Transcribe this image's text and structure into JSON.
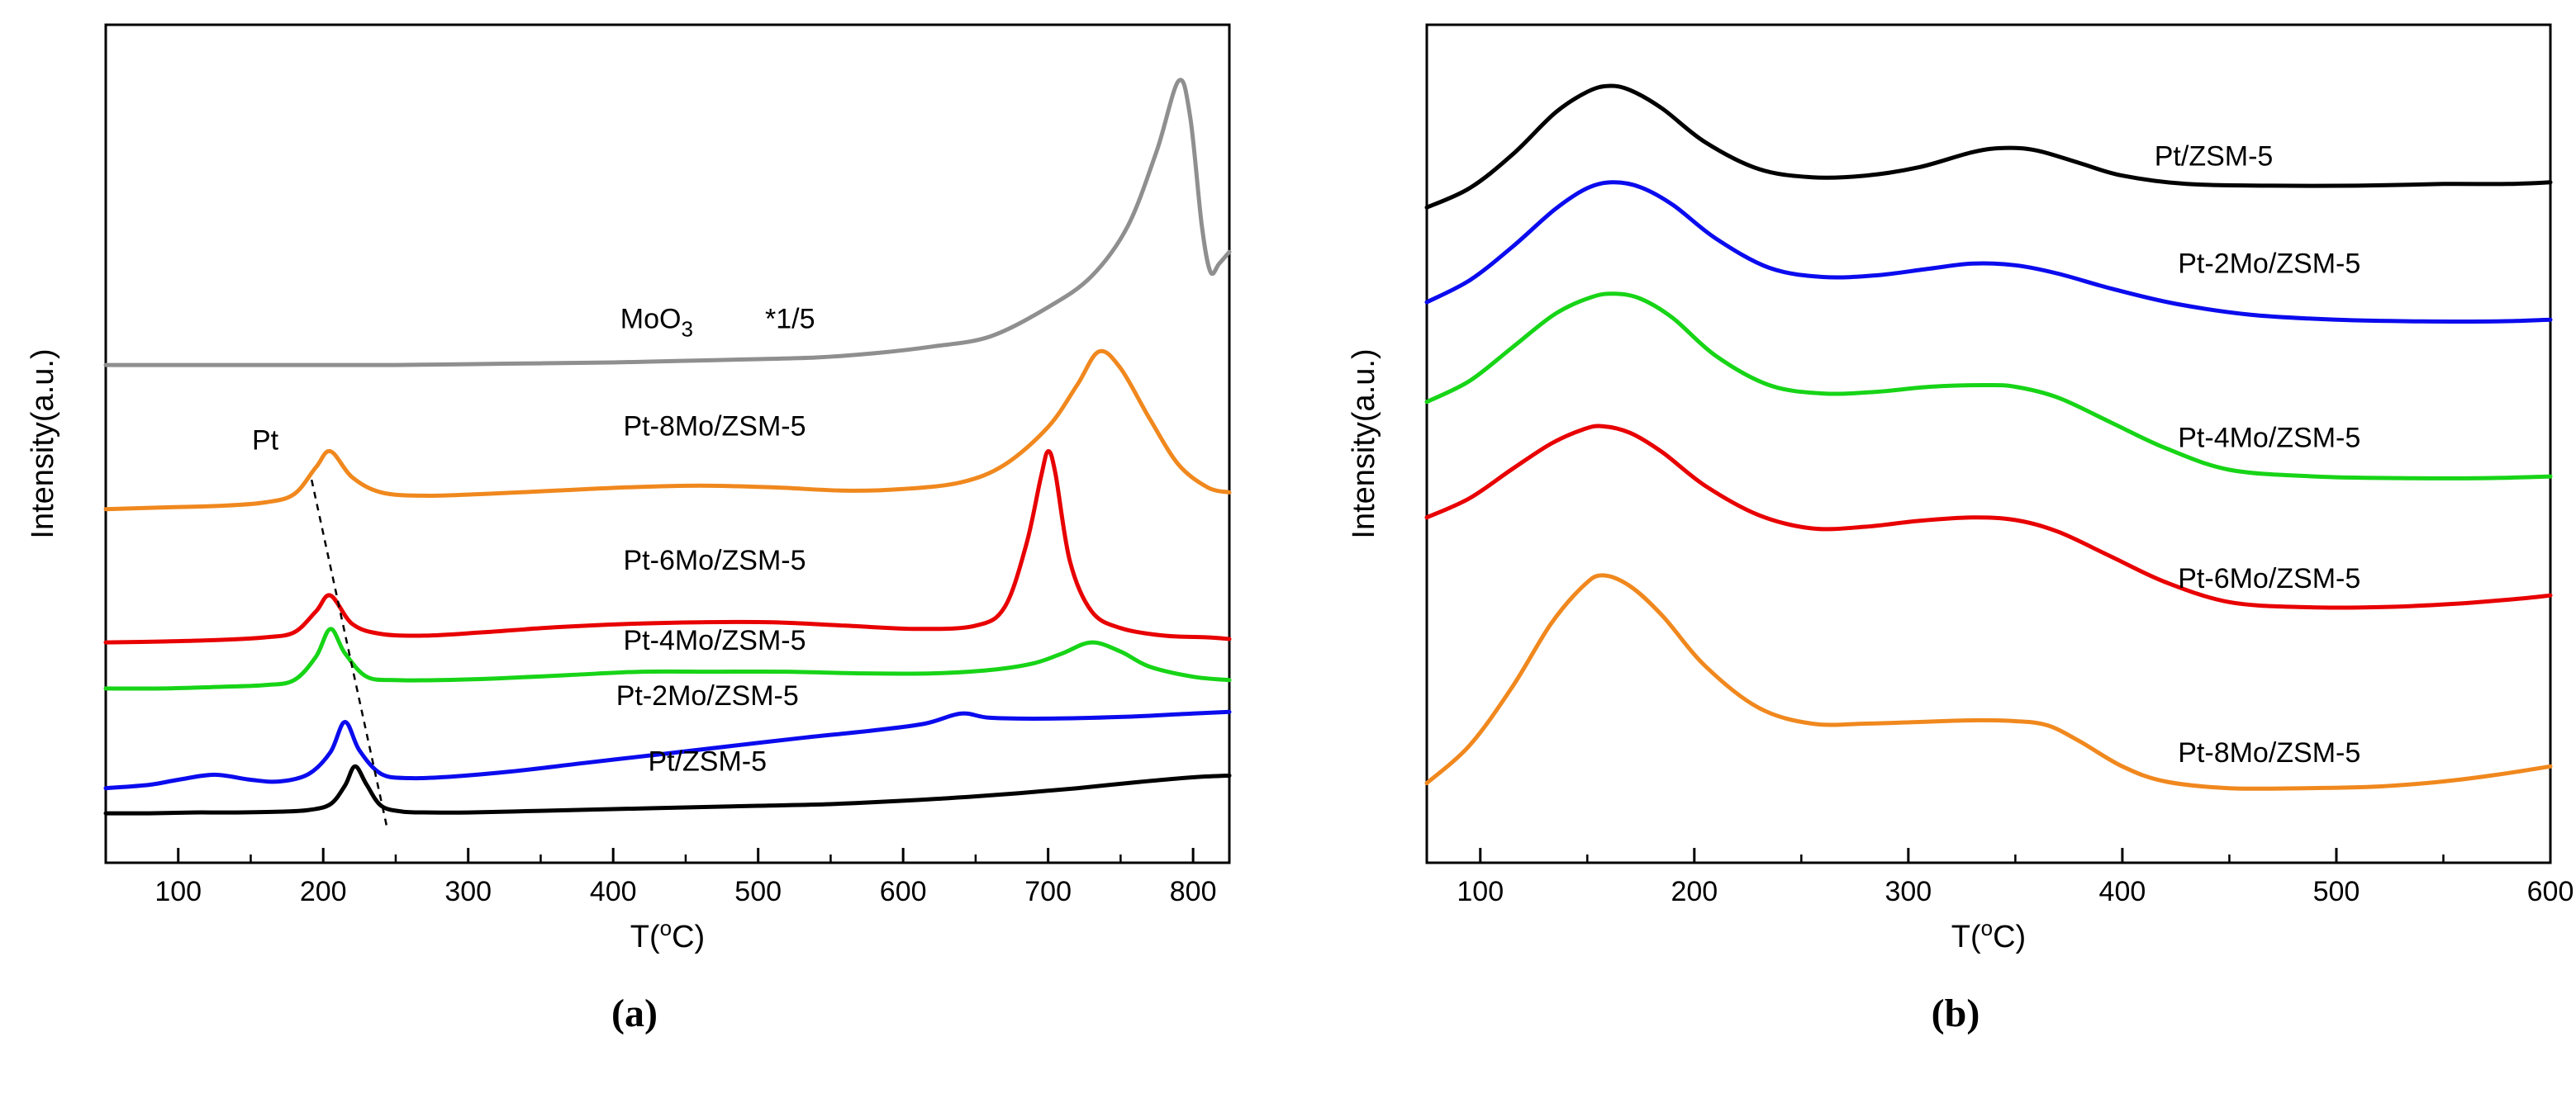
{
  "figure": {
    "captions": {
      "a": "(a)",
      "b": "(b)"
    }
  },
  "chart_data": [
    {
      "id": "a",
      "type": "line",
      "xlabel_parts": [
        {
          "t": "T("
        },
        {
          "t": "o",
          "sup": true
        },
        {
          "t": "C)"
        }
      ],
      "ylabel": "Intensity(a.u.)",
      "xlim": [
        50,
        825
      ],
      "ylim": [
        0,
        100
      ],
      "xticks": [
        100,
        200,
        300,
        400,
        500,
        600,
        700,
        800
      ],
      "minor_tick_step": 50,
      "grid": false,
      "series": [
        {
          "name": "Pt/ZSM-5",
          "color": "#000000",
          "x": [
            50,
            80,
            110,
            140,
            170,
            190,
            205,
            215,
            222,
            230,
            240,
            255,
            275,
            300,
            350,
            400,
            450,
            500,
            550,
            600,
            640,
            680,
            720,
            760,
            800,
            825
          ],
          "y": [
            5.9,
            5.9,
            6.0,
            6.0,
            6.1,
            6.3,
            7.0,
            9.2,
            11.5,
            9.3,
            6.8,
            6.1,
            6.0,
            6.0,
            6.2,
            6.4,
            6.6,
            6.8,
            7.0,
            7.4,
            7.8,
            8.3,
            8.9,
            9.6,
            10.2,
            10.4
          ]
        },
        {
          "name": "Pt-2Mo/ZSM-5",
          "color": "#0b0bee",
          "x": [
            50,
            80,
            100,
            125,
            150,
            170,
            190,
            205,
            215,
            225,
            240,
            260,
            290,
            330,
            380,
            430,
            480,
            530,
            580,
            615,
            640,
            660,
            700,
            750,
            800,
            825
          ],
          "y": [
            8.9,
            9.3,
            9.9,
            10.5,
            9.9,
            9.7,
            10.6,
            13.2,
            16.8,
            13.4,
            10.6,
            10.1,
            10.3,
            10.9,
            11.9,
            12.9,
            13.9,
            14.9,
            15.8,
            16.6,
            17.8,
            17.3,
            17.2,
            17.4,
            17.8,
            18.0
          ]
        },
        {
          "name": "Pt-4Mo/ZSM-5",
          "color": "#17d417",
          "x": [
            50,
            90,
            130,
            160,
            180,
            195,
            205,
            215,
            230,
            250,
            280,
            320,
            370,
            420,
            470,
            520,
            570,
            620,
            660,
            690,
            710,
            730,
            750,
            770,
            800,
            825
          ],
          "y": [
            20.8,
            20.8,
            21.0,
            21.2,
            21.8,
            24.6,
            27.9,
            25.0,
            22.2,
            21.8,
            21.8,
            22.0,
            22.4,
            22.8,
            22.8,
            22.8,
            22.6,
            22.6,
            23.0,
            23.8,
            25.0,
            26.3,
            25.2,
            23.4,
            22.2,
            21.8
          ]
        },
        {
          "name": "Pt-6Mo/ZSM-5",
          "color": "#e80000",
          "x": [
            50,
            90,
            130,
            160,
            180,
            195,
            205,
            220,
            240,
            270,
            310,
            360,
            410,
            460,
            510,
            560,
            610,
            650,
            670,
            685,
            695,
            700,
            705,
            715,
            730,
            750,
            780,
            810,
            825
          ],
          "y": [
            26.3,
            26.4,
            26.6,
            26.9,
            27.5,
            30.0,
            31.9,
            28.5,
            27.3,
            27.1,
            27.5,
            28.1,
            28.5,
            28.7,
            28.7,
            28.3,
            27.9,
            28.3,
            30.5,
            38.0,
            46.0,
            49.1,
            46.5,
            36.0,
            30.0,
            28.0,
            27.1,
            26.9,
            26.7
          ]
        },
        {
          "name": "Pt-8Mo/ZSM-5",
          "color": "#f0881e",
          "x": [
            50,
            90,
            130,
            160,
            180,
            195,
            205,
            220,
            240,
            270,
            310,
            360,
            410,
            460,
            510,
            560,
            600,
            640,
            670,
            700,
            720,
            735,
            750,
            770,
            790,
            810,
            825
          ],
          "y": [
            42.2,
            42.4,
            42.6,
            43.0,
            44.0,
            47.2,
            49.1,
            46.0,
            44.2,
            43.8,
            44.0,
            44.4,
            44.8,
            45.0,
            44.8,
            44.4,
            44.6,
            45.4,
            47.5,
            52.0,
            57.0,
            61.0,
            59.0,
            53.0,
            47.5,
            44.8,
            44.2
          ]
        },
        {
          "name": "MoO3",
          "color": "#8f8f8f",
          "x": [
            50,
            100,
            150,
            200,
            250,
            300,
            350,
            400,
            450,
            500,
            540,
            580,
            620,
            660,
            700,
            730,
            755,
            775,
            790,
            798,
            806,
            812,
            818,
            825
          ],
          "y": [
            59.4,
            59.4,
            59.4,
            59.4,
            59.4,
            59.5,
            59.6,
            59.7,
            59.9,
            60.1,
            60.3,
            60.8,
            61.6,
            62.8,
            66.3,
            70.0,
            76.0,
            85.0,
            93.3,
            89.0,
            76.0,
            70.5,
            71.5,
            72.9
          ]
        }
      ],
      "labels": [
        {
          "name": "pt-annotation-label",
          "text": "Pt",
          "x": 160,
          "y": 49.3,
          "anchor": "middle"
        },
        {
          "name": "series-label-moo3",
          "parts": [
            {
              "t": "MoO"
            },
            {
              "t": "3",
              "sub": true
            }
          ],
          "x": 430,
          "y": 63.8,
          "anchor": "middle"
        },
        {
          "name": "scale-factor-label",
          "text": "*1/5",
          "x": 522,
          "y": 63.8,
          "anchor": "middle"
        },
        {
          "name": "series-label-pt-8mo",
          "text": "Pt-8Mo/ZSM-5",
          "x": 470,
          "y": 51.0,
          "anchor": "middle"
        },
        {
          "name": "series-label-pt-6mo",
          "text": "Pt-6Mo/ZSM-5",
          "x": 470,
          "y": 35.0,
          "anchor": "middle"
        },
        {
          "name": "series-label-pt-4mo",
          "text": "Pt-4Mo/ZSM-5",
          "x": 470,
          "y": 25.4,
          "anchor": "middle"
        },
        {
          "name": "series-label-pt-2mo",
          "text": "Pt-2Mo/ZSM-5",
          "x": 465,
          "y": 18.8,
          "anchor": "middle"
        },
        {
          "name": "series-label-pt",
          "text": "Pt/ZSM-5",
          "x": 465,
          "y": 11.0,
          "anchor": "middle"
        }
      ],
      "annotations": [
        {
          "name": "pt-peak-shift-dashed-line",
          "type": "dashed-line",
          "x1": 192,
          "y1": 45.7,
          "x2": 244,
          "y2": 4.2
        }
      ]
    },
    {
      "id": "b",
      "type": "line",
      "xlabel_parts": [
        {
          "t": "T("
        },
        {
          "t": "o",
          "sup": true
        },
        {
          "t": "C)"
        }
      ],
      "ylabel": "Intensity(a.u.)",
      "xlim": [
        75,
        600
      ],
      "ylim": [
        0,
        100
      ],
      "xticks": [
        100,
        200,
        300,
        400,
        500,
        600
      ],
      "minor_tick_step": 50,
      "grid": false,
      "series": [
        {
          "name": "Pt/ZSM-5",
          "color": "#000000",
          "x": [
            75,
            95,
            115,
            135,
            150,
            160,
            170,
            185,
            205,
            230,
            255,
            280,
            305,
            330,
            345,
            360,
            380,
            400,
            430,
            470,
            510,
            550,
            580,
            600
          ],
          "y": [
            78.2,
            80.5,
            84.5,
            89.5,
            92.0,
            92.7,
            92.2,
            90.0,
            86.0,
            82.8,
            81.8,
            82.0,
            83.0,
            84.8,
            85.3,
            85.0,
            83.5,
            82.0,
            81.0,
            80.8,
            80.8,
            81.0,
            81.0,
            81.2
          ]
        },
        {
          "name": "Pt-2Mo/ZSM-5",
          "color": "#0b0bee",
          "x": [
            75,
            95,
            115,
            135,
            150,
            162,
            175,
            190,
            210,
            235,
            260,
            285,
            310,
            330,
            350,
            370,
            395,
            425,
            460,
            500,
            540,
            575,
            600
          ],
          "y": [
            66.9,
            69.5,
            73.5,
            78.0,
            80.5,
            81.2,
            80.6,
            78.5,
            74.5,
            71.0,
            69.9,
            70.1,
            70.9,
            71.5,
            71.3,
            70.3,
            68.5,
            66.7,
            65.4,
            64.8,
            64.6,
            64.6,
            64.8
          ]
        },
        {
          "name": "Pt-4Mo/ZSM-5",
          "color": "#17d417",
          "x": [
            75,
            95,
            115,
            135,
            152,
            163,
            175,
            190,
            210,
            235,
            260,
            285,
            310,
            335,
            350,
            370,
            395,
            420,
            450,
            490,
            530,
            570,
            600
          ],
          "y": [
            55.0,
            57.5,
            61.5,
            65.5,
            67.5,
            67.9,
            67.3,
            65.0,
            60.5,
            57.0,
            56.0,
            56.2,
            56.8,
            57.0,
            56.8,
            55.5,
            52.5,
            49.5,
            46.9,
            46.1,
            45.9,
            45.9,
            46.1
          ]
        },
        {
          "name": "Pt-6Mo/ZSM-5",
          "color": "#e80000",
          "x": [
            75,
            95,
            115,
            133,
            148,
            157,
            170,
            185,
            205,
            230,
            255,
            280,
            305,
            330,
            350,
            370,
            395,
            420,
            450,
            485,
            520,
            555,
            585,
            600
          ],
          "y": [
            41.2,
            43.5,
            47.0,
            50.0,
            51.7,
            52.1,
            51.3,
            49.0,
            45.0,
            41.5,
            39.9,
            40.1,
            40.8,
            41.2,
            40.9,
            39.5,
            36.5,
            33.5,
            31.1,
            30.5,
            30.5,
            30.9,
            31.5,
            31.9
          ]
        },
        {
          "name": "Pt-8Mo/ZSM-5",
          "color": "#f0881e",
          "x": [
            75,
            95,
            115,
            133,
            148,
            157,
            170,
            185,
            205,
            230,
            255,
            280,
            305,
            330,
            350,
            365,
            380,
            400,
            420,
            450,
            485,
            520,
            550,
            575,
            600
          ],
          "y": [
            9.5,
            14.0,
            21.0,
            28.5,
            33.0,
            34.3,
            33.0,
            29.5,
            23.5,
            18.5,
            16.6,
            16.6,
            16.8,
            17.0,
            16.9,
            16.4,
            14.5,
            11.5,
            9.7,
            8.9,
            8.9,
            9.1,
            9.7,
            10.5,
            11.5
          ]
        }
      ],
      "labels": [
        {
          "name": "series-label-pt",
          "text": "Pt/ZSM-5",
          "x": 415,
          "y": 83.2,
          "anchor": "start"
        },
        {
          "name": "series-label-pt-2mo",
          "text": "Pt-2Mo/ZSM-5",
          "x": 426,
          "y": 70.4,
          "anchor": "start"
        },
        {
          "name": "series-label-pt-4mo",
          "text": "Pt-4Mo/ZSM-5",
          "x": 426,
          "y": 49.6,
          "anchor": "start"
        },
        {
          "name": "series-label-pt-6mo",
          "text": "Pt-6Mo/ZSM-5",
          "x": 426,
          "y": 32.8,
          "anchor": "start"
        },
        {
          "name": "series-label-pt-8mo",
          "text": "Pt-8Mo/ZSM-5",
          "x": 426,
          "y": 12.0,
          "anchor": "start"
        }
      ],
      "annotations": []
    }
  ]
}
